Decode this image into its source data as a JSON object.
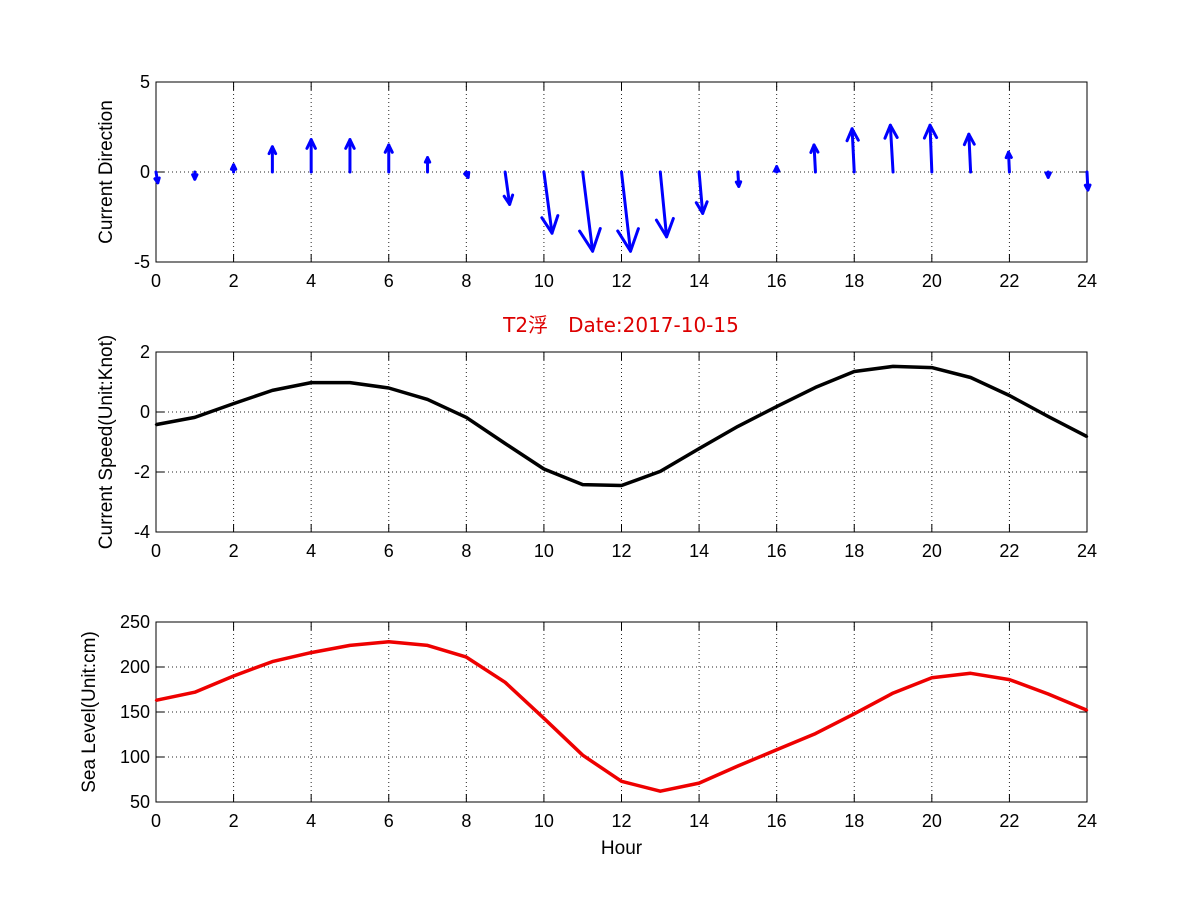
{
  "figure_title": "T2浮　Date:2017-10-15",
  "colors": {
    "quiver": "#0000ff",
    "speed": "#000000",
    "sea_level": "#ee0000",
    "title": "#dd0000"
  },
  "chart_data": [
    {
      "type": "quiver",
      "ylabel": "Current Direction",
      "xlabel": "",
      "xlim": [
        0,
        24
      ],
      "ylim": [
        -5,
        5
      ],
      "xticks": [
        0,
        2,
        4,
        6,
        8,
        10,
        12,
        14,
        16,
        18,
        20,
        22,
        24
      ],
      "yticks": [
        -5,
        0,
        5
      ],
      "grid": true,
      "x": [
        0,
        1,
        2,
        3,
        4,
        5,
        6,
        7,
        8,
        9,
        10,
        11,
        12,
        13,
        14,
        15,
        16,
        17,
        18,
        19,
        20,
        21,
        22,
        23,
        24
      ],
      "u": [
        0.1,
        0.0,
        0.0,
        0.0,
        0.0,
        0.0,
        0.0,
        0.0,
        0.1,
        0.25,
        0.45,
        0.55,
        0.5,
        0.35,
        0.2,
        0.05,
        0.0,
        -0.08,
        -0.12,
        -0.15,
        -0.1,
        -0.1,
        -0.05,
        0.0,
        0.05
      ],
      "v": [
        -0.6,
        -0.4,
        0.4,
        1.4,
        1.8,
        1.8,
        1.5,
        0.8,
        -0.3,
        -1.8,
        -3.4,
        -4.4,
        -4.4,
        -3.6,
        -2.3,
        -0.8,
        0.3,
        1.5,
        2.4,
        2.6,
        2.6,
        2.1,
        1.1,
        -0.3,
        -1.0
      ]
    },
    {
      "type": "line",
      "ylabel": "Current Speed(Unit:Knot)",
      "xlabel": "",
      "xlim": [
        0,
        24
      ],
      "ylim": [
        -4,
        2
      ],
      "xticks": [
        0,
        2,
        4,
        6,
        8,
        10,
        12,
        14,
        16,
        18,
        20,
        22,
        24
      ],
      "yticks": [
        -4,
        -2,
        0,
        2
      ],
      "grid": true,
      "series": [
        {
          "x": [
            0,
            1,
            2,
            3,
            4,
            5,
            6,
            7,
            8,
            9,
            10,
            11,
            12,
            13,
            14,
            15,
            16,
            17,
            18,
            19,
            20,
            21,
            22,
            23,
            24
          ],
          "values": [
            -0.42,
            -0.18,
            0.28,
            0.72,
            0.98,
            0.98,
            0.8,
            0.42,
            -0.18,
            -1.05,
            -1.9,
            -2.42,
            -2.45,
            -1.98,
            -1.22,
            -0.48,
            0.18,
            0.82,
            1.35,
            1.52,
            1.48,
            1.15,
            0.55,
            -0.15,
            -0.82
          ]
        }
      ]
    },
    {
      "type": "line",
      "ylabel": "Sea Level(Unit:cm)",
      "xlabel": "Hour",
      "xlim": [
        0,
        24
      ],
      "ylim": [
        50,
        250
      ],
      "xticks": [
        0,
        2,
        4,
        6,
        8,
        10,
        12,
        14,
        16,
        18,
        20,
        22,
        24
      ],
      "yticks": [
        50,
        100,
        150,
        200,
        250
      ],
      "grid": true,
      "series": [
        {
          "x": [
            0,
            1,
            2,
            3,
            4,
            5,
            6,
            7,
            8,
            9,
            10,
            11,
            12,
            13,
            14,
            15,
            16,
            17,
            18,
            19,
            20,
            21,
            22,
            23,
            24
          ],
          "values": [
            163,
            172,
            190,
            206,
            216,
            224,
            228,
            224,
            211,
            183,
            143,
            102,
            73,
            62,
            71,
            90,
            108,
            126,
            148,
            171,
            188,
            193,
            186,
            170,
            152
          ]
        }
      ]
    }
  ]
}
